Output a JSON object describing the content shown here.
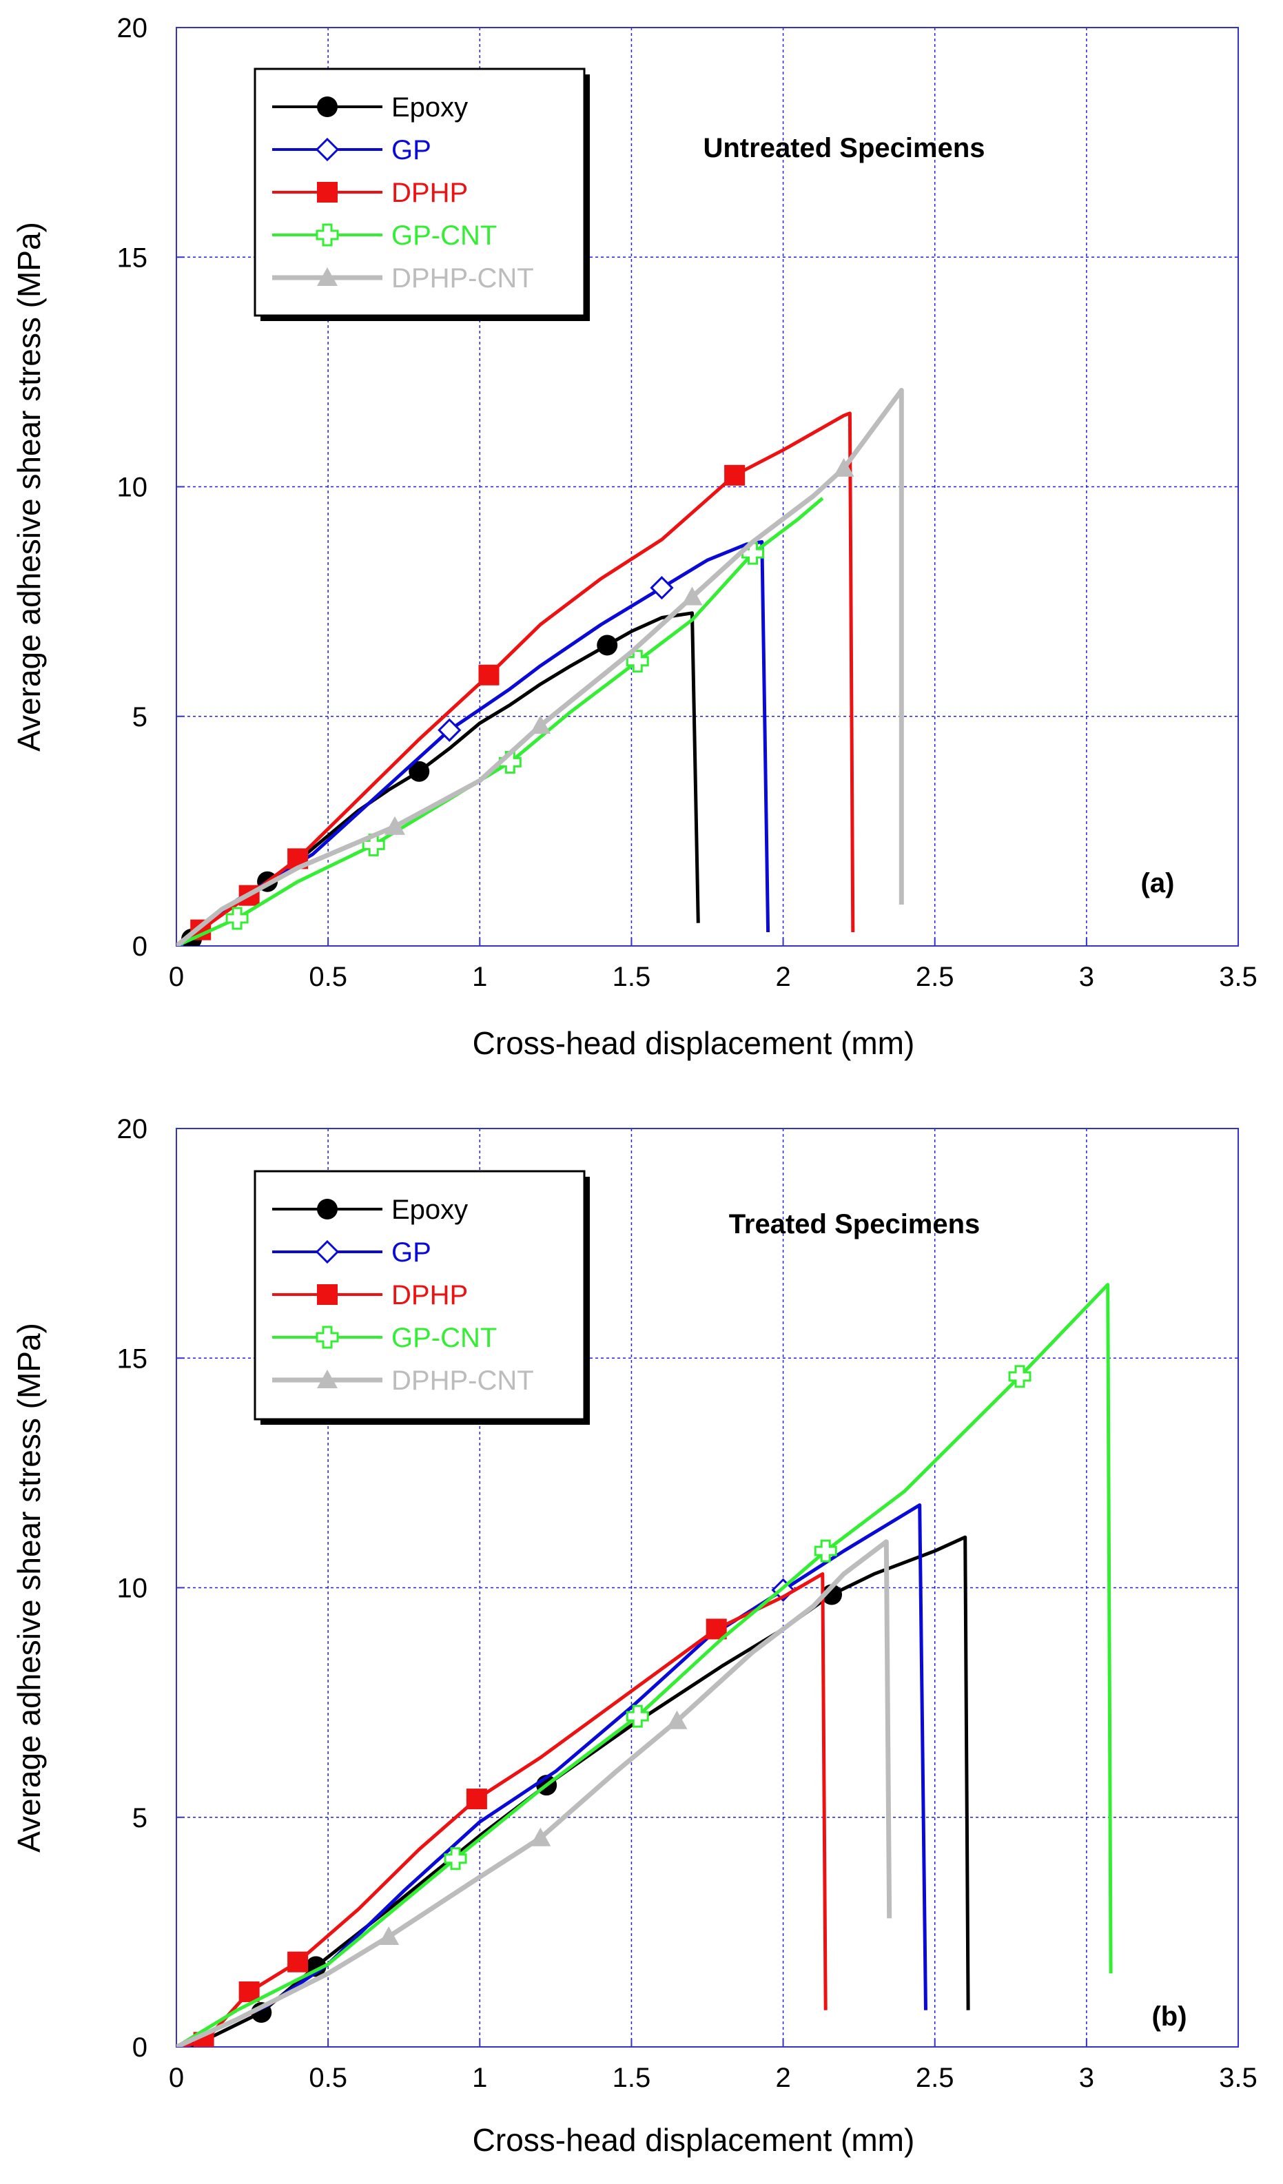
{
  "chart_data": [
    {
      "type": "line",
      "panel_label": "(a)",
      "annotation": "Untreated Specimens",
      "xlabel": "Cross-head displacement (mm)",
      "ylabel": "Average adhesive shear stress (MPa)",
      "xlim": [
        0,
        3.5
      ],
      "ylim": [
        0,
        20
      ],
      "xticks": [
        0,
        0.5,
        1,
        1.5,
        2,
        2.5,
        3,
        3.5
      ],
      "yticks": [
        0,
        5,
        10,
        15,
        20
      ],
      "grid": true,
      "legend_position": "top-left",
      "series": [
        {
          "name": "Epoxy",
          "color": "#000000",
          "marker": "circle",
          "points": [
            [
              0,
              0
            ],
            [
              0.05,
              0.15
            ],
            [
              0.1,
              0.45
            ],
            [
              0.18,
              0.85
            ],
            [
              0.3,
              1.4
            ],
            [
              0.4,
              1.85
            ],
            [
              0.5,
              2.4
            ],
            [
              0.6,
              2.95
            ],
            [
              0.7,
              3.4
            ],
            [
              0.8,
              3.8
            ],
            [
              0.9,
              4.3
            ],
            [
              1.0,
              4.85
            ],
            [
              1.1,
              5.25
            ],
            [
              1.2,
              5.7
            ],
            [
              1.3,
              6.1
            ],
            [
              1.42,
              6.55
            ],
            [
              1.5,
              6.85
            ],
            [
              1.6,
              7.15
            ],
            [
              1.7,
              7.25
            ],
            [
              1.72,
              0.5
            ]
          ],
          "markers": [
            [
              0.05,
              0.15
            ],
            [
              0.3,
              1.4
            ],
            [
              0.8,
              3.8
            ],
            [
              1.42,
              6.55
            ]
          ]
        },
        {
          "name": "GP",
          "color": "#0a0ad8",
          "marker": "diamond-open",
          "points": [
            [
              0,
              0
            ],
            [
              0.1,
              0.5
            ],
            [
              0.2,
              1.0
            ],
            [
              0.35,
              1.6
            ],
            [
              0.45,
              2.0
            ],
            [
              0.6,
              2.9
            ],
            [
              0.7,
              3.5
            ],
            [
              0.9,
              4.7
            ],
            [
              1.0,
              5.15
            ],
            [
              1.1,
              5.6
            ],
            [
              1.2,
              6.1
            ],
            [
              1.4,
              7.0
            ],
            [
              1.6,
              7.8
            ],
            [
              1.75,
              8.4
            ],
            [
              1.88,
              8.75
            ],
            [
              1.93,
              8.8
            ],
            [
              1.95,
              0.3
            ]
          ],
          "markers": [
            [
              0.9,
              4.7
            ],
            [
              1.6,
              7.8
            ]
          ]
        },
        {
          "name": "DPHP",
          "color": "#ee1111",
          "marker": "square",
          "points": [
            [
              0,
              0
            ],
            [
              0.08,
              0.35
            ],
            [
              0.24,
              1.1
            ],
            [
              0.4,
              1.9
            ],
            [
              0.6,
              3.2
            ],
            [
              0.8,
              4.5
            ],
            [
              1.03,
              5.9
            ],
            [
              1.2,
              7.0
            ],
            [
              1.4,
              8.0
            ],
            [
              1.6,
              8.85
            ],
            [
              1.84,
              10.25
            ],
            [
              2.0,
              10.8
            ],
            [
              2.2,
              11.55
            ],
            [
              2.22,
              11.6
            ],
            [
              2.23,
              0.3
            ]
          ],
          "markers": [
            [
              0.08,
              0.35
            ],
            [
              0.24,
              1.1
            ],
            [
              0.4,
              1.9
            ],
            [
              1.03,
              5.9
            ],
            [
              1.84,
              10.25
            ]
          ]
        },
        {
          "name": "GP-CNT",
          "color": "#33ee33",
          "marker": "cross-open",
          "points": [
            [
              0,
              0
            ],
            [
              0.2,
              0.6
            ],
            [
              0.4,
              1.4
            ],
            [
              0.65,
              2.2
            ],
            [
              0.9,
              3.2
            ],
            [
              1.1,
              4.0
            ],
            [
              1.3,
              5.1
            ],
            [
              1.52,
              6.2
            ],
            [
              1.7,
              7.1
            ],
            [
              1.9,
              8.55
            ],
            [
              2.05,
              9.3
            ],
            [
              2.13,
              9.75
            ]
          ],
          "markers": [
            [
              0.2,
              0.6
            ],
            [
              0.65,
              2.2
            ],
            [
              1.1,
              4.0
            ],
            [
              1.52,
              6.2
            ],
            [
              1.9,
              8.55
            ]
          ]
        },
        {
          "name": "DPHP-CNT",
          "color": "#bcbcbc",
          "marker": "triangle",
          "points": [
            [
              0,
              0
            ],
            [
              0.15,
              0.8
            ],
            [
              0.4,
              1.7
            ],
            [
              0.72,
              2.6
            ],
            [
              1.0,
              3.6
            ],
            [
              1.2,
              4.8
            ],
            [
              1.5,
              6.4
            ],
            [
              1.7,
              7.6
            ],
            [
              1.9,
              8.8
            ],
            [
              2.1,
              9.8
            ],
            [
              2.2,
              10.4
            ],
            [
              2.39,
              12.1
            ],
            [
              2.39,
              0.9
            ]
          ],
          "markers": [
            [
              0.72,
              2.6
            ],
            [
              1.2,
              4.8
            ],
            [
              1.7,
              7.6
            ],
            [
              2.2,
              10.4
            ]
          ]
        }
      ]
    },
    {
      "type": "line",
      "panel_label": "(b)",
      "annotation": "Treated Specimens",
      "xlabel": "Cross-head displacement (mm)",
      "ylabel": "Average adhesive shear stress (MPa)",
      "xlim": [
        0,
        3.5
      ],
      "ylim": [
        0,
        20
      ],
      "xticks": [
        0,
        0.5,
        1,
        1.5,
        2,
        2.5,
        3,
        3.5
      ],
      "yticks": [
        0,
        5,
        10,
        15,
        20
      ],
      "grid": true,
      "legend_position": "top-left",
      "series": [
        {
          "name": "Epoxy",
          "color": "#000000",
          "marker": "circle",
          "points": [
            [
              0,
              0
            ],
            [
              0.08,
              0.1
            ],
            [
              0.28,
              0.75
            ],
            [
              0.46,
              1.75
            ],
            [
              0.7,
              3.0
            ],
            [
              1.0,
              4.6
            ],
            [
              1.22,
              5.7
            ],
            [
              1.5,
              7.0
            ],
            [
              1.8,
              8.3
            ],
            [
              2.0,
              9.1
            ],
            [
              2.16,
              9.85
            ],
            [
              2.3,
              10.3
            ],
            [
              2.5,
              10.8
            ],
            [
              2.6,
              11.1
            ],
            [
              2.61,
              0.8
            ]
          ],
          "markers": [
            [
              0.08,
              0.1
            ],
            [
              0.28,
              0.75
            ],
            [
              0.46,
              1.75
            ],
            [
              1.22,
              5.7
            ],
            [
              2.16,
              9.85
            ]
          ]
        },
        {
          "name": "GP",
          "color": "#0a0ad8",
          "marker": "diamond-open",
          "points": [
            [
              0,
              0
            ],
            [
              0.3,
              0.9
            ],
            [
              0.5,
              1.8
            ],
            [
              0.75,
              3.4
            ],
            [
              1.0,
              4.9
            ],
            [
              1.25,
              6.0
            ],
            [
              1.5,
              7.4
            ],
            [
              1.75,
              8.9
            ],
            [
              2.0,
              9.95
            ],
            [
              2.2,
              10.8
            ],
            [
              2.45,
              11.8
            ],
            [
              2.47,
              0.8
            ]
          ],
          "markers": [
            [
              2.0,
              9.95
            ]
          ]
        },
        {
          "name": "DPHP",
          "color": "#ee1111",
          "marker": "square",
          "points": [
            [
              0,
              0
            ],
            [
              0.09,
              0.1
            ],
            [
              0.24,
              1.2
            ],
            [
              0.4,
              1.85
            ],
            [
              0.6,
              3.0
            ],
            [
              0.8,
              4.3
            ],
            [
              0.99,
              5.4
            ],
            [
              1.2,
              6.3
            ],
            [
              1.5,
              7.75
            ],
            [
              1.78,
              9.1
            ],
            [
              2.0,
              9.8
            ],
            [
              2.13,
              10.3
            ],
            [
              2.14,
              0.8
            ]
          ],
          "markers": [
            [
              0.09,
              0.1
            ],
            [
              0.24,
              1.2
            ],
            [
              0.4,
              1.85
            ],
            [
              0.99,
              5.4
            ],
            [
              1.78,
              9.1
            ]
          ]
        },
        {
          "name": "GP-CNT",
          "color": "#33ee33",
          "marker": "cross-open",
          "points": [
            [
              0,
              0
            ],
            [
              0.2,
              0.8
            ],
            [
              0.5,
              1.8
            ],
            [
              0.92,
              4.1
            ],
            [
              1.2,
              5.6
            ],
            [
              1.52,
              7.2
            ],
            [
              1.8,
              8.9
            ],
            [
              2.0,
              10.0
            ],
            [
              2.14,
              10.8
            ],
            [
              2.4,
              12.1
            ],
            [
              2.78,
              14.6
            ],
            [
              3.07,
              16.6
            ],
            [
              3.08,
              1.6
            ]
          ],
          "markers": [
            [
              0.92,
              4.1
            ],
            [
              1.52,
              7.2
            ],
            [
              2.14,
              10.8
            ],
            [
              2.78,
              14.6
            ]
          ]
        },
        {
          "name": "DPHP-CNT",
          "color": "#bcbcbc",
          "marker": "triangle",
          "points": [
            [
              0,
              0
            ],
            [
              0.2,
              0.6
            ],
            [
              0.5,
              1.6
            ],
            [
              0.7,
              2.4
            ],
            [
              1.0,
              3.7
            ],
            [
              1.2,
              4.55
            ],
            [
              1.45,
              6.0
            ],
            [
              1.65,
              7.1
            ],
            [
              1.9,
              8.6
            ],
            [
              2.1,
              9.6
            ],
            [
              2.2,
              10.3
            ],
            [
              2.34,
              11.0
            ],
            [
              2.35,
              2.8
            ]
          ],
          "markers": [
            [
              0.7,
              2.4
            ],
            [
              1.2,
              4.55
            ],
            [
              1.65,
              7.1
            ]
          ]
        }
      ]
    }
  ]
}
